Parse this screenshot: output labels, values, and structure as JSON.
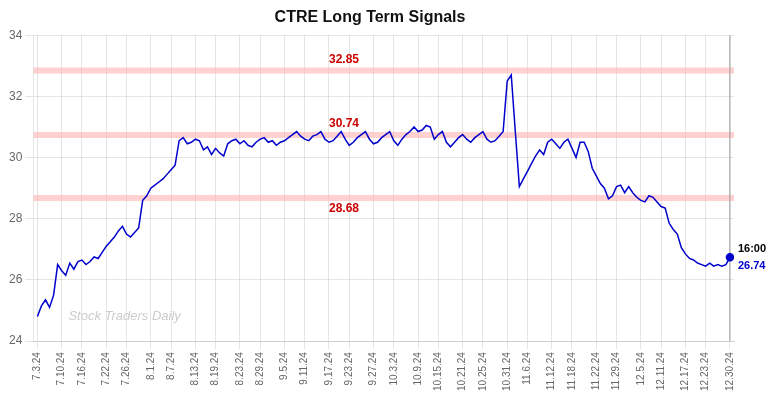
{
  "chart_data": {
    "type": "line",
    "title": "CTRE Long Term Signals",
    "color": "#0000cc",
    "grid": true,
    "ylim": [
      24,
      34
    ],
    "yticks": [
      24,
      26,
      28,
      30,
      32,
      34
    ],
    "categories": [
      "7.3.24",
      null,
      null,
      null,
      null,
      null,
      "7.10.24",
      null,
      null,
      null,
      null,
      "7.16.24",
      null,
      null,
      null,
      null,
      null,
      "7.22.24",
      null,
      null,
      null,
      null,
      "7.26.24",
      null,
      null,
      null,
      null,
      null,
      "8.1.24",
      null,
      null,
      null,
      null,
      "8.7.24",
      null,
      null,
      null,
      null,
      null,
      "8.13.24",
      null,
      null,
      null,
      null,
      "8.19.24",
      null,
      null,
      null,
      null,
      null,
      "8.23.24",
      null,
      null,
      null,
      null,
      "8.29.24",
      null,
      null,
      null,
      null,
      null,
      "9.5.24",
      null,
      null,
      null,
      null,
      "9.11.24",
      null,
      null,
      null,
      null,
      null,
      "9.17.24",
      null,
      null,
      null,
      null,
      "9.23.24",
      null,
      null,
      null,
      null,
      null,
      "9.27.24",
      null,
      null,
      null,
      null,
      "10.3.24",
      null,
      null,
      null,
      null,
      null,
      "10.9.24",
      null,
      null,
      null,
      null,
      "10.15.24",
      null,
      null,
      null,
      null,
      null,
      "10.21.24",
      null,
      null,
      null,
      null,
      "10.25.24",
      null,
      null,
      null,
      null,
      null,
      "10.31.24",
      null,
      null,
      null,
      null,
      "11.6.24",
      null,
      null,
      null,
      null,
      null,
      "11.12.24",
      null,
      null,
      null,
      null,
      "11.18.24",
      null,
      null,
      null,
      null,
      null,
      "11.22.24",
      null,
      null,
      null,
      null,
      "11.29.24",
      null,
      null,
      null,
      null,
      null,
      "12.5.24",
      null,
      null,
      null,
      null,
      "12.11.24",
      null,
      null,
      null,
      null,
      null,
      "12.17.24",
      null,
      null,
      null,
      null,
      "12.23.24",
      null,
      null,
      null,
      null,
      null,
      "12.30.24"
    ],
    "values": [
      24.8,
      25.15,
      25.35,
      25.1,
      25.5,
      26.5,
      26.3,
      26.15,
      26.55,
      26.35,
      26.6,
      26.65,
      26.5,
      26.6,
      26.75,
      26.7,
      26.9,
      27.1,
      27.25,
      27.4,
      27.6,
      27.75,
      27.5,
      27.4,
      27.55,
      27.7,
      28.6,
      28.75,
      29.0,
      29.1,
      29.2,
      29.3,
      29.45,
      29.6,
      29.75,
      30.55,
      30.65,
      30.45,
      30.5,
      30.6,
      30.55,
      30.25,
      30.35,
      30.1,
      30.3,
      30.15,
      30.05,
      30.45,
      30.55,
      30.6,
      30.45,
      30.55,
      30.4,
      30.35,
      30.5,
      30.6,
      30.65,
      30.5,
      30.55,
      30.4,
      30.5,
      30.55,
      30.65,
      30.75,
      30.85,
      30.7,
      30.6,
      30.55,
      30.7,
      30.75,
      30.85,
      30.6,
      30.5,
      30.55,
      30.7,
      30.85,
      30.6,
      30.4,
      30.5,
      30.65,
      30.75,
      30.85,
      30.6,
      30.45,
      30.5,
      30.65,
      30.75,
      30.85,
      30.55,
      30.4,
      30.6,
      30.75,
      30.85,
      31.0,
      30.85,
      30.9,
      31.05,
      31.0,
      30.6,
      30.75,
      30.85,
      30.5,
      30.35,
      30.5,
      30.65,
      30.75,
      30.6,
      30.5,
      30.65,
      30.75,
      30.85,
      30.6,
      30.5,
      30.55,
      30.7,
      30.85,
      32.5,
      32.7,
      30.85,
      29.05,
      29.3,
      29.55,
      29.8,
      30.05,
      30.25,
      30.1,
      30.5,
      30.6,
      30.45,
      30.3,
      30.5,
      30.6,
      30.3,
      30.0,
      30.5,
      30.5,
      30.2,
      29.65,
      29.4,
      29.15,
      29.0,
      28.65,
      28.75,
      29.05,
      29.1,
      28.85,
      29.05,
      28.85,
      28.7,
      28.6,
      28.55,
      28.75,
      28.7,
      28.55,
      28.4,
      28.35,
      27.85,
      27.65,
      27.5,
      27.05,
      26.85,
      26.7,
      26.65,
      26.55,
      26.5,
      26.45,
      26.55,
      26.45,
      26.5,
      26.45,
      26.5,
      26.74
    ],
    "h_lines": {
      "values": [
        32.85,
        30.74,
        28.68
      ],
      "color": "#ffb3b3",
      "label_color": "#cc0000"
    },
    "watermark": {
      "text": "Stock Traders Daily",
      "color": "#cccccc"
    },
    "end_marker": {
      "color": "#0000cc"
    },
    "end_labels": [
      {
        "text": "16:00",
        "color": "#000000"
      },
      {
        "text": "26.74",
        "color": "#0000cc"
      }
    ]
  }
}
